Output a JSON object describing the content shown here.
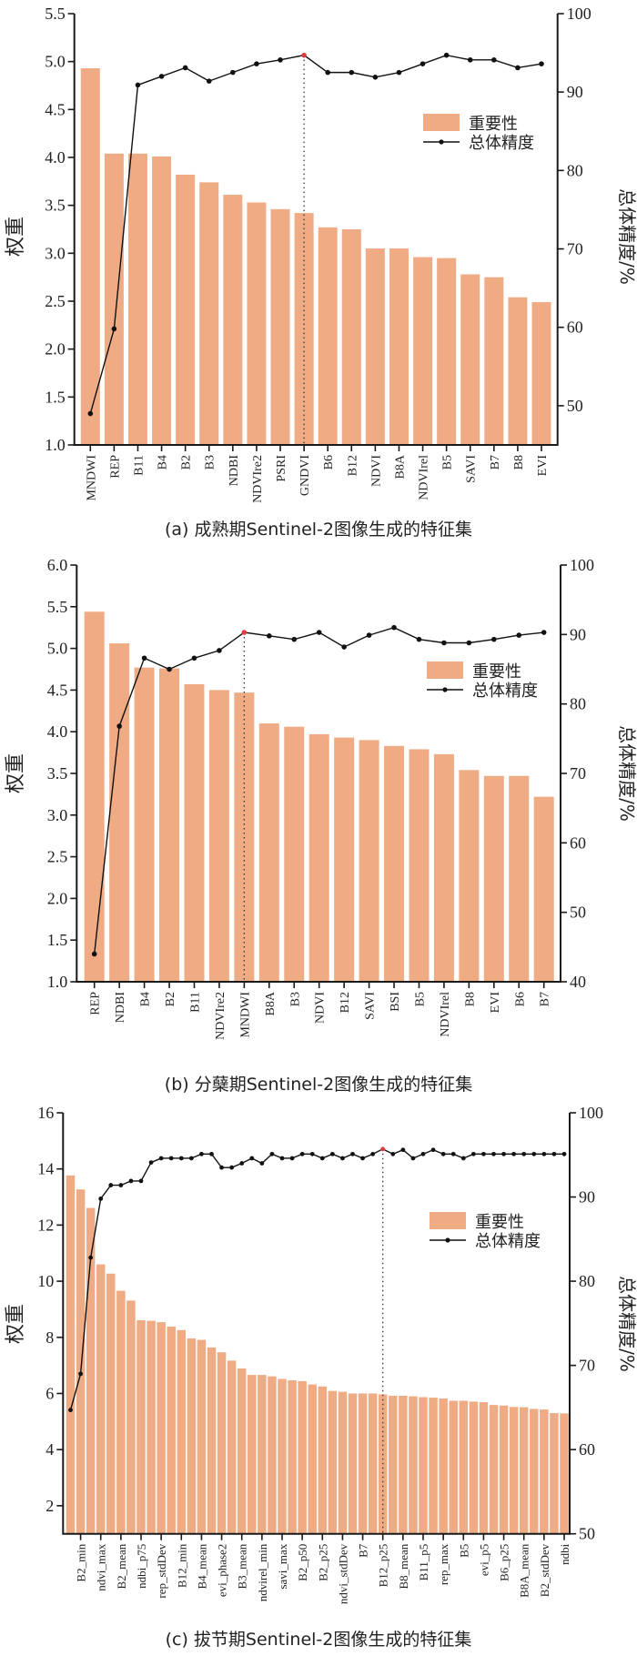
{
  "colors": {
    "bar": "#EFAC84",
    "line": "#111111",
    "highlight": "#E03A3E",
    "axis": "#1a1a1a"
  },
  "chart_data": [
    {
      "type": "bar+line",
      "caption": "(a) 成熟期Sentinel-2图像生成的特征集",
      "ylabel": "权重",
      "y2label": "总体精度/%",
      "legend": {
        "bar": "重要性",
        "line": "总体精度",
        "position": "upper-right"
      },
      "ylim": [
        1.0,
        5.5
      ],
      "yticks": [
        "1.0",
        "1.5",
        "2.0",
        "2.5",
        "3.0",
        "3.5",
        "4.0",
        "4.5",
        "5.0",
        "5.5"
      ],
      "y2lim": [
        45,
        100
      ],
      "y2ticks": [
        "50",
        "60",
        "70",
        "80",
        "90",
        "100"
      ],
      "highlight_index": 9,
      "categories": [
        "MNDWI",
        "REP",
        "B11",
        "B4",
        "B2",
        "B3",
        "NDBI",
        "NDVIre2",
        "PSRI",
        "GNDVI",
        "B6",
        "B12",
        "NDVI",
        "B8A",
        "NDVIrel",
        "B5",
        "SAVI",
        "B7",
        "B8",
        "EVI"
      ],
      "importance": [
        4.93,
        4.04,
        4.04,
        4.01,
        3.82,
        3.74,
        3.61,
        3.53,
        3.46,
        3.42,
        3.27,
        3.25,
        3.05,
        3.05,
        2.96,
        2.95,
        2.78,
        2.75,
        2.54,
        2.49
      ],
      "accuracy": [
        49.0,
        59.8,
        90.9,
        92.0,
        93.1,
        91.4,
        92.5,
        93.6,
        94.1,
        94.7,
        92.5,
        92.5,
        91.9,
        92.5,
        93.6,
        94.7,
        94.1,
        94.1,
        93.1,
        93.6
      ]
    },
    {
      "type": "bar+line",
      "caption": "(b) 分蘖期Sentinel-2图像生成的特征集",
      "ylabel": "权重",
      "y2label": "总体精度/%",
      "legend": {
        "bar": "重要性",
        "line": "总体精度",
        "position": "upper-right"
      },
      "ylim": [
        1.0,
        6.0
      ],
      "yticks": [
        "1.0",
        "1.5",
        "2.0",
        "2.5",
        "3.0",
        "3.5",
        "4.0",
        "4.5",
        "5.0",
        "5.5",
        "6.0"
      ],
      "y2lim": [
        40,
        100
      ],
      "y2ticks": [
        "40",
        "50",
        "60",
        "70",
        "80",
        "90",
        "100"
      ],
      "highlight_index": 6,
      "categories": [
        "REP",
        "NDBI",
        "B4",
        "B2",
        "B11",
        "NDVIre2",
        "MNDWI",
        "B8A",
        "B3",
        "NDVI",
        "B12",
        "SAVI",
        "BSI",
        "B5",
        "NDVIrel",
        "B8",
        "EVI",
        "B6",
        "B7"
      ],
      "importance": [
        5.44,
        5.06,
        4.77,
        4.76,
        4.57,
        4.5,
        4.47,
        4.1,
        4.06,
        3.97,
        3.93,
        3.9,
        3.83,
        3.79,
        3.73,
        3.54,
        3.47,
        3.47,
        3.22
      ],
      "accuracy": [
        44.0,
        76.8,
        86.6,
        85.0,
        86.6,
        87.7,
        90.3,
        89.8,
        89.3,
        90.3,
        88.2,
        89.9,
        91.0,
        89.3,
        88.8,
        88.8,
        89.3,
        89.9,
        90.3
      ]
    },
    {
      "type": "bar+line",
      "caption": "(c) 拔节期Sentinel-2图像生成的特征集",
      "ylabel": "权重",
      "y2label": "总体精度/%",
      "legend": {
        "bar": "重要性",
        "line": "总体精度",
        "position": "upper-right"
      },
      "ylim": [
        1,
        16
      ],
      "yticks": [
        "2",
        "4",
        "6",
        "8",
        "10",
        "12",
        "14",
        "16"
      ],
      "y2lim": [
        50,
        100
      ],
      "y2ticks": [
        "50",
        "60",
        "70",
        "80",
        "90",
        "100"
      ],
      "highlight_index": 31,
      "label_every": 2,
      "label_offset": 1,
      "categories": [
        "B2_min",
        "ndvi_max",
        "B2_mean",
        "ndbi_p75",
        "rep_stdDev",
        "B12_min",
        "B4_mean",
        "evi_phase2",
        "B3_mean",
        "ndvirel_min",
        "savi_max",
        "B2_p50",
        "B2_p25",
        "ndvi_stdDev",
        "B7",
        "B12_p25",
        "B8_mean",
        "B11_p5",
        "rep_max",
        "B5",
        "evi_p5",
        "B6_p25",
        "B8A_mean",
        "B2_stdDev",
        "ndbi"
      ],
      "importance": [
        13.77,
        13.27,
        12.61,
        10.6,
        10.27,
        9.66,
        9.31,
        8.61,
        8.59,
        8.54,
        8.38,
        8.26,
        7.96,
        7.91,
        7.64,
        7.47,
        7.17,
        6.89,
        6.66,
        6.66,
        6.61,
        6.52,
        6.47,
        6.44,
        6.32,
        6.25,
        6.09,
        6.06,
        6.0,
        6.0,
        6.0,
        5.97,
        5.92,
        5.92,
        5.9,
        5.87,
        5.85,
        5.82,
        5.74,
        5.74,
        5.71,
        5.69,
        5.59,
        5.57,
        5.52,
        5.51,
        5.45,
        5.43,
        5.3,
        5.29
      ],
      "accuracy": [
        64.7,
        69.0,
        82.8,
        89.8,
        91.4,
        91.4,
        91.9,
        91.9,
        94.1,
        94.6,
        94.6,
        94.6,
        94.6,
        95.1,
        95.1,
        93.5,
        93.5,
        94.0,
        94.6,
        94.0,
        95.1,
        94.6,
        94.6,
        95.1,
        95.1,
        94.6,
        95.1,
        94.6,
        95.1,
        94.6,
        95.1,
        95.7,
        95.1,
        95.6,
        94.6,
        95.1,
        95.6,
        95.1,
        95.1,
        94.6,
        95.1,
        95.1,
        95.1,
        95.1,
        95.1,
        95.1,
        95.1,
        95.1,
        95.1,
        95.1
      ]
    }
  ]
}
